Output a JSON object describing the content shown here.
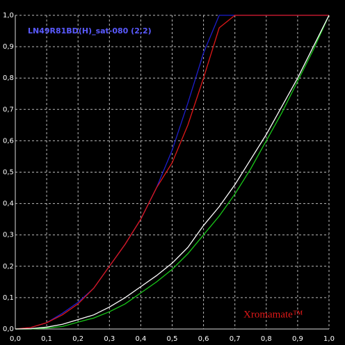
{
  "chart_data": {
    "type": "line",
    "title": "LN49R81BD(H)_sat-080 (2,2)",
    "watermark": "Xromamate™",
    "x": [
      0,
      0.05,
      0.1,
      0.15,
      0.2,
      0.25,
      0.3,
      0.35,
      0.4,
      0.45,
      0.5,
      0.55,
      0.6,
      0.65,
      0.7,
      0.75,
      0.8,
      0.85,
      0.9,
      0.95,
      1
    ],
    "series": [
      {
        "color": "#1e1ecc",
        "values": [
          0,
          0.005,
          0.02,
          0.05,
          0.085,
          0.13,
          0.2,
          0.27,
          0.35,
          0.45,
          0.57,
          0.72,
          0.88,
          1,
          1,
          1,
          1,
          1,
          1,
          1,
          1
        ]
      },
      {
        "color": "#e01818",
        "values": [
          0,
          0.005,
          0.02,
          0.045,
          0.08,
          0.13,
          0.2,
          0.27,
          0.35,
          0.45,
          0.53,
          0.65,
          0.8,
          0.96,
          1,
          1,
          1,
          1,
          1,
          1,
          1
        ]
      },
      {
        "color": "#19c819",
        "values": [
          0,
          0,
          0.003,
          0.008,
          0.022,
          0.035,
          0.055,
          0.08,
          0.115,
          0.15,
          0.19,
          0.24,
          0.3,
          0.36,
          0.43,
          0.51,
          0.6,
          0.69,
          0.79,
          0.89,
          1
        ]
      },
      {
        "color": "#ffffff",
        "values": [
          0,
          0.001,
          0.006,
          0.015,
          0.03,
          0.045,
          0.07,
          0.1,
          0.135,
          0.17,
          0.21,
          0.26,
          0.33,
          0.39,
          0.46,
          0.54,
          0.62,
          0.71,
          0.8,
          0.9,
          1
        ]
      }
    ],
    "xlim": [
      0,
      1
    ],
    "ylim": [
      0,
      1
    ],
    "xticks": [
      {
        "value": 0,
        "label": "0,0"
      },
      {
        "value": 0.1,
        "label": "0,1"
      },
      {
        "value": 0.2,
        "label": "0,2"
      },
      {
        "value": 0.3,
        "label": "0,3"
      },
      {
        "value": 0.4,
        "label": "0,4"
      },
      {
        "value": 0.5,
        "label": "0,5"
      },
      {
        "value": 0.6,
        "label": "0,6"
      },
      {
        "value": 0.7,
        "label": "0,7"
      },
      {
        "value": 0.8,
        "label": "0,8"
      },
      {
        "value": 0.9,
        "label": "0,9"
      },
      {
        "value": 1,
        "label": "1,0"
      }
    ],
    "yticks": [
      {
        "value": 0,
        "label": "0,0"
      },
      {
        "value": 0.1,
        "label": "0,1"
      },
      {
        "value": 0.2,
        "label": "0,2"
      },
      {
        "value": 0.3,
        "label": "0,3"
      },
      {
        "value": 0.4,
        "label": "0,4"
      },
      {
        "value": 0.5,
        "label": "0,5"
      },
      {
        "value": 0.6,
        "label": "0,6"
      },
      {
        "value": 0.7,
        "label": "0,7"
      },
      {
        "value": 0.8,
        "label": "0,8"
      },
      {
        "value": 0.9,
        "label": "0,9"
      },
      {
        "value": 1,
        "label": "1,0"
      }
    ],
    "grid": true
  }
}
